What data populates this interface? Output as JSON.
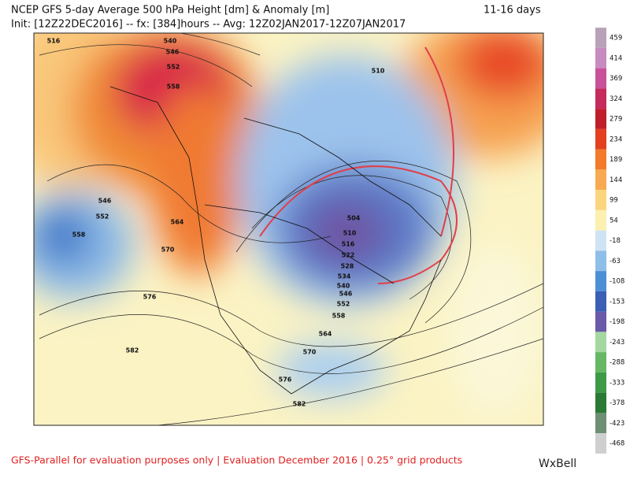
{
  "header": {
    "title": "NCEP GFS 5-day Average 500 hPa Height [dm] & Anomaly [m]",
    "subtitle": "Init: [12Z22DEC2016] -- fx: [384]hours -- Avg: 12Z02JAN2017-12Z07JAN2017",
    "range": "11-16 days"
  },
  "colorbar": {
    "levels": [
      459,
      414,
      369,
      324,
      279,
      234,
      189,
      144,
      99,
      54,
      -18,
      -63,
      -108,
      -153,
      -198,
      -243,
      -288,
      -333,
      -378,
      -423,
      -468
    ],
    "colors": [
      "#b9a2b8",
      "#c68bc0",
      "#c9509a",
      "#c42a5c",
      "#bf1e2b",
      "#e2401f",
      "#f27a2a",
      "#f8aa52",
      "#fbd57e",
      "#fbf0b0",
      "#cfe3f5",
      "#8fbfe8",
      "#4d8fd4",
      "#3a5fb4",
      "#6a5aa8",
      "#a5d8a0",
      "#66b866",
      "#3f9a48",
      "#2a7a35",
      "#6f8f72",
      "#cfcfcf"
    ]
  },
  "contour_labels": [
    516,
    540,
    546,
    552,
    558,
    546,
    552,
    558,
    564,
    570,
    576,
    582,
    510,
    504,
    510,
    516,
    522,
    528,
    534,
    540,
    546,
    552,
    558,
    564,
    570,
    576,
    582
  ],
  "footer": {
    "text": "GFS-Parallel for evaluation purposes only | Evaluation December 2016 | 0.25° grid products",
    "logo": "WxBell"
  }
}
